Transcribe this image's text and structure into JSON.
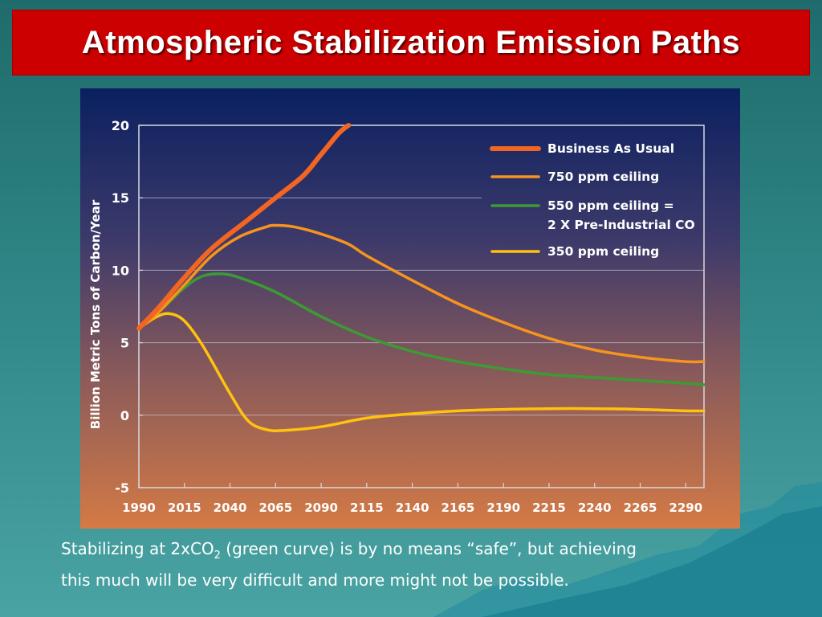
{
  "slide": {
    "title": "Atmospheric Stabilization Emission Paths",
    "caption_prefix": "Stabilizing at 2xCO",
    "caption_sub": "2",
    "caption_line1_rest": " (green curve) is by no means “safe”, but achieving",
    "caption_line2": "this much will be very difficult and more might not be possible.",
    "colors": {
      "title_bar": "#cc0000",
      "slide_background": "#2f8585",
      "chart_bg_top": "#0a2060",
      "chart_bg_bottom": "#d47a45"
    }
  },
  "chart_data": {
    "type": "line",
    "title": "",
    "xlabel": "",
    "ylabel": "Billion Metric Tons of Carbon/Year",
    "xlim": [
      1990,
      2300
    ],
    "ylim": [
      -5,
      20
    ],
    "x_ticks": [
      1990,
      2015,
      2040,
      2065,
      2090,
      2115,
      2140,
      2165,
      2190,
      2215,
      2240,
      2265,
      2290
    ],
    "y_ticks": [
      -5,
      0,
      5,
      10,
      15,
      20
    ],
    "grid": "horizontal",
    "legend_position": "top-right",
    "series": [
      {
        "name": "Business As Usual",
        "color": "#f26522",
        "x": [
          1990,
          2000,
          2015,
          2030,
          2050,
          2065,
          2080,
          2090,
          2100,
          2105
        ],
        "y": [
          6.0,
          7.3,
          9.5,
          11.5,
          13.5,
          15.0,
          16.5,
          18.0,
          19.5,
          20.0
        ]
      },
      {
        "name": "750 ppm ceiling",
        "color": "#f7941d",
        "x": [
          1990,
          2000,
          2015,
          2030,
          2045,
          2060,
          2065,
          2075,
          2090,
          2105,
          2115,
          2140,
          2165,
          2190,
          2215,
          2240,
          2265,
          2290,
          2300
        ],
        "y": [
          6.0,
          7.0,
          9.0,
          11.0,
          12.3,
          13.0,
          13.1,
          13.0,
          12.5,
          11.8,
          11.0,
          9.3,
          7.7,
          6.4,
          5.3,
          4.5,
          4.0,
          3.7,
          3.7
        ]
      },
      {
        "name": "550 ppm ceiling = 2 X Pre-Industrial CO",
        "legend_lines": [
          "550 ppm ceiling =",
          "2 X Pre-Industrial CO"
        ],
        "color": "#3d9a35",
        "x": [
          1990,
          2000,
          2015,
          2025,
          2035,
          2045,
          2065,
          2090,
          2115,
          2140,
          2165,
          2190,
          2215,
          2240,
          2265,
          2290,
          2300
        ],
        "y": [
          6.0,
          7.0,
          8.8,
          9.6,
          9.75,
          9.5,
          8.5,
          6.8,
          5.4,
          4.4,
          3.7,
          3.2,
          2.8,
          2.6,
          2.4,
          2.2,
          2.1
        ]
      },
      {
        "name": "350 ppm ceiling",
        "color": "#ffc20e",
        "x": [
          1990,
          2000,
          2007,
          2015,
          2025,
          2040,
          2050,
          2060,
          2070,
          2090,
          2115,
          2140,
          2165,
          2190,
          2215,
          2240,
          2265,
          2290,
          2300
        ],
        "y": [
          6.0,
          6.8,
          7.0,
          6.5,
          4.8,
          1.5,
          -0.4,
          -1.0,
          -1.05,
          -0.8,
          -0.2,
          0.1,
          0.3,
          0.4,
          0.45,
          0.45,
          0.4,
          0.3,
          0.3
        ]
      }
    ]
  }
}
